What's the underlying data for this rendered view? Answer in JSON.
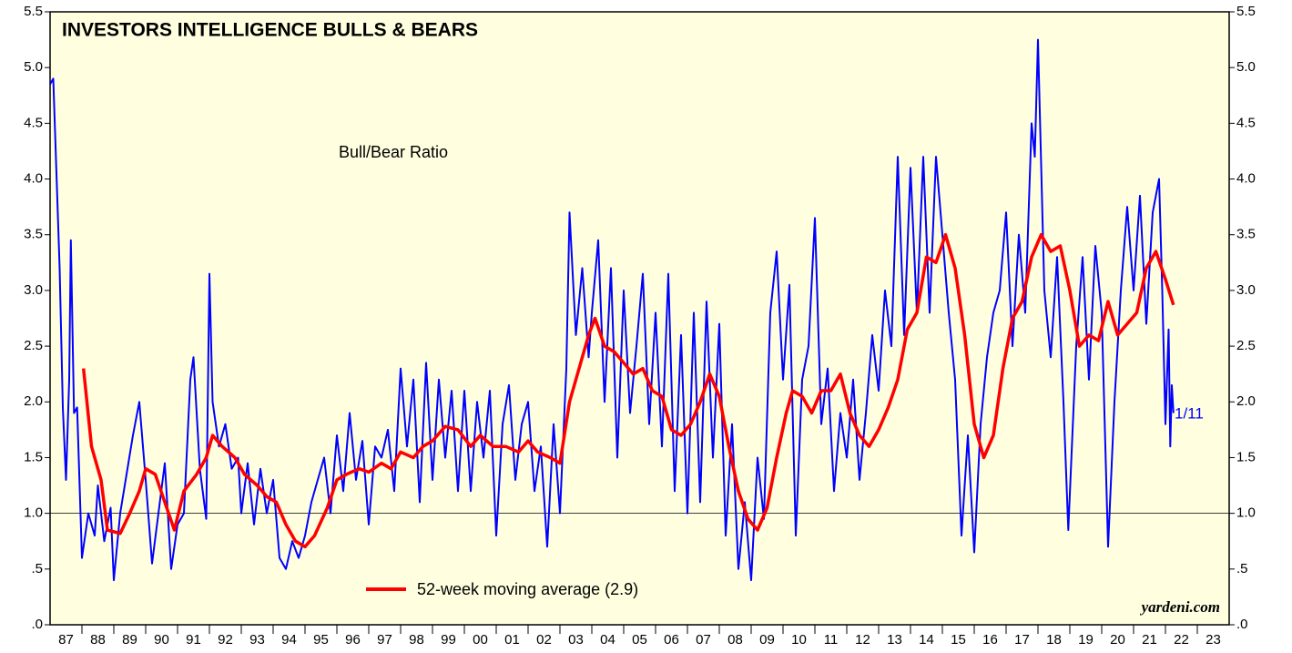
{
  "chart_data": {
    "type": "line",
    "title": "INVESTORS INTELLIGENCE BULLS & BEARS",
    "annotations": [
      "yardeni.com",
      "1/11"
    ],
    "categories": [
      "87",
      "88",
      "89",
      "90",
      "91",
      "92",
      "93",
      "94",
      "95",
      "96",
      "97",
      "98",
      "99",
      "00",
      "01",
      "02",
      "03",
      "04",
      "05",
      "06",
      "07",
      "08",
      "09",
      "10",
      "11",
      "12",
      "13",
      "14",
      "15",
      "16",
      "17",
      "18",
      "19",
      "20",
      "21",
      "22",
      "23"
    ],
    "xlim": [
      1987,
      2024
    ],
    "ylim": [
      0,
      5.5
    ],
    "yticks": [
      {
        "value": 0,
        "label": ".0"
      },
      {
        "value": 0.5,
        "label": ".5"
      },
      {
        "value": 1,
        "label": "1.0"
      },
      {
        "value": 1.5,
        "label": "1.5"
      },
      {
        "value": 2,
        "label": "2.0"
      },
      {
        "value": 2.5,
        "label": "2.5"
      },
      {
        "value": 3,
        "label": "3.0"
      },
      {
        "value": 3.5,
        "label": "3.5"
      },
      {
        "value": 4,
        "label": "4.0"
      },
      {
        "value": 4.5,
        "label": "4.5"
      },
      {
        "value": 5,
        "label": "5.0"
      },
      {
        "value": 5.5,
        "label": "5.5"
      }
    ],
    "reference_line": 1,
    "background": "#ffffe0",
    "series": [
      {
        "name": "Bull/Bear Ratio",
        "color": "#0000ff",
        "x": [
          1987.0,
          1987.1,
          1987.2,
          1987.3,
          1987.4,
          1987.5,
          1987.6,
          1987.65,
          1987.75,
          1987.85,
          1988.0,
          1988.2,
          1988.4,
          1988.5,
          1988.7,
          1988.9,
          1989.0,
          1989.2,
          1989.4,
          1989.6,
          1989.8,
          1990.0,
          1990.2,
          1990.4,
          1990.6,
          1990.8,
          1991.0,
          1991.2,
          1991.4,
          1991.5,
          1991.7,
          1991.9,
          1992.0,
          1992.1,
          1992.3,
          1992.5,
          1992.7,
          1992.9,
          1993.0,
          1993.2,
          1993.4,
          1993.6,
          1993.8,
          1994.0,
          1994.2,
          1994.4,
          1994.6,
          1994.8,
          1995.0,
          1995.2,
          1995.4,
          1995.6,
          1995.8,
          1996.0,
          1996.2,
          1996.4,
          1996.6,
          1996.8,
          1997.0,
          1997.2,
          1997.4,
          1997.6,
          1997.8,
          1998.0,
          1998.2,
          1998.4,
          1998.6,
          1998.8,
          1999.0,
          1999.2,
          1999.4,
          1999.6,
          1999.8,
          2000.0,
          2000.2,
          2000.4,
          2000.6,
          2000.8,
          2001.0,
          2001.2,
          2001.4,
          2001.6,
          2001.8,
          2002.0,
          2002.2,
          2002.4,
          2002.6,
          2002.8,
          2003.0,
          2003.2,
          2003.3,
          2003.5,
          2003.7,
          2003.9,
          2004.0,
          2004.2,
          2004.4,
          2004.6,
          2004.8,
          2005.0,
          2005.2,
          2005.4,
          2005.6,
          2005.8,
          2006.0,
          2006.2,
          2006.4,
          2006.6,
          2006.8,
          2007.0,
          2007.2,
          2007.4,
          2007.6,
          2007.8,
          2008.0,
          2008.2,
          2008.4,
          2008.6,
          2008.8,
          2009.0,
          2009.2,
          2009.4,
          2009.6,
          2009.8,
          2010.0,
          2010.2,
          2010.4,
          2010.6,
          2010.8,
          2011.0,
          2011.2,
          2011.4,
          2011.6,
          2011.8,
          2012.0,
          2012.2,
          2012.4,
          2012.6,
          2012.8,
          2013.0,
          2013.2,
          2013.4,
          2013.6,
          2013.8,
          2014.0,
          2014.2,
          2014.4,
          2014.6,
          2014.8,
          2015.0,
          2015.2,
          2015.4,
          2015.6,
          2015.8,
          2016.0,
          2016.2,
          2016.4,
          2016.6,
          2016.8,
          2017.0,
          2017.2,
          2017.4,
          2017.6,
          2017.8,
          2017.9,
          2018.0,
          2018.2,
          2018.4,
          2018.6,
          2018.8,
          2018.95,
          2019.2,
          2019.4,
          2019.6,
          2019.8,
          2020.0,
          2020.2,
          2020.4,
          2020.6,
          2020.8,
          2021.0,
          2021.2,
          2021.4,
          2021.6,
          2021.8,
          2021.9,
          2022.0,
          2022.1,
          2022.15,
          2022.2,
          2022.25
        ],
        "values": [
          4.85,
          4.9,
          4.05,
          3.2,
          1.95,
          1.3,
          2.2,
          3.45,
          1.9,
          1.95,
          0.6,
          1.0,
          0.8,
          1.25,
          0.75,
          1.05,
          0.4,
          1.0,
          1.35,
          1.7,
          2.0,
          1.3,
          0.55,
          1.0,
          1.45,
          0.5,
          0.9,
          1.0,
          2.2,
          2.4,
          1.4,
          0.95,
          3.15,
          2.0,
          1.6,
          1.8,
          1.4,
          1.5,
          1.0,
          1.45,
          0.9,
          1.4,
          1.0,
          1.3,
          0.6,
          0.5,
          0.75,
          0.6,
          0.8,
          1.1,
          1.3,
          1.5,
          1.0,
          1.7,
          1.2,
          1.9,
          1.3,
          1.65,
          0.9,
          1.6,
          1.5,
          1.75,
          1.2,
          2.3,
          1.6,
          2.2,
          1.1,
          2.35,
          1.3,
          2.2,
          1.5,
          2.1,
          1.2,
          2.1,
          1.2,
          2.0,
          1.5,
          2.1,
          0.8,
          1.8,
          2.15,
          1.3,
          1.8,
          2.0,
          1.2,
          1.6,
          0.7,
          1.8,
          1.0,
          2.3,
          3.7,
          2.6,
          3.2,
          2.4,
          2.8,
          3.45,
          2.0,
          3.2,
          1.5,
          3.0,
          1.9,
          2.5,
          3.15,
          1.8,
          2.8,
          1.6,
          3.15,
          1.2,
          2.6,
          1.0,
          2.8,
          1.1,
          2.9,
          1.5,
          2.7,
          0.8,
          1.8,
          0.5,
          1.1,
          0.4,
          1.5,
          0.95,
          2.8,
          3.35,
          2.2,
          3.05,
          0.8,
          2.2,
          2.5,
          3.65,
          1.8,
          2.3,
          1.2,
          1.9,
          1.5,
          2.2,
          1.3,
          1.9,
          2.6,
          2.1,
          3.0,
          2.5,
          4.2,
          2.6,
          4.1,
          2.8,
          4.2,
          2.8,
          4.2,
          3.5,
          2.8,
          2.2,
          0.8,
          1.7,
          0.65,
          1.8,
          2.4,
          2.8,
          3.0,
          3.7,
          2.5,
          3.5,
          2.8,
          4.5,
          4.2,
          5.25,
          3.0,
          2.4,
          3.3,
          2.0,
          0.85,
          2.5,
          3.3,
          2.2,
          3.4,
          2.8,
          0.7,
          2.0,
          3.0,
          3.75,
          3.0,
          3.85,
          2.7,
          3.7,
          4.0,
          3.0,
          1.8,
          2.65,
          1.6,
          2.15,
          1.9
        ]
      },
      {
        "name": "52-week moving average (2.9)",
        "color": "#ff0000",
        "x": [
          1988.05,
          1988.3,
          1988.6,
          1988.8,
          1989.2,
          1989.5,
          1989.8,
          1990.0,
          1990.3,
          1990.6,
          1990.9,
          1991.2,
          1991.6,
          1991.9,
          1992.1,
          1992.4,
          1992.8,
          1993.1,
          1993.5,
          1993.8,
          1994.1,
          1994.4,
          1994.7,
          1995.0,
          1995.3,
          1995.7,
          1996.0,
          1996.3,
          1996.7,
          1997.0,
          1997.4,
          1997.7,
          1998.0,
          1998.4,
          1998.7,
          1999.0,
          1999.4,
          1999.8,
          2000.2,
          2000.5,
          2000.9,
          2001.3,
          2001.7,
          2002.0,
          2002.3,
          2002.7,
          2003.0,
          2003.3,
          2003.6,
          2003.9,
          2004.1,
          2004.4,
          2004.7,
          2005.0,
          2005.3,
          2005.6,
          2005.9,
          2006.2,
          2006.5,
          2006.8,
          2007.1,
          2007.4,
          2007.7,
          2008.0,
          2008.3,
          2008.6,
          2008.9,
          2009.2,
          2009.5,
          2009.8,
          2010.1,
          2010.3,
          2010.6,
          2010.9,
          2011.2,
          2011.5,
          2011.8,
          2012.1,
          2012.4,
          2012.7,
          2013.0,
          2013.3,
          2013.6,
          2013.9,
          2014.2,
          2014.5,
          2014.8,
          2015.1,
          2015.4,
          2015.7,
          2016.0,
          2016.3,
          2016.6,
          2016.9,
          2017.2,
          2017.5,
          2017.8,
          2018.1,
          2018.4,
          2018.7,
          2019.0,
          2019.3,
          2019.6,
          2019.9,
          2020.2,
          2020.5,
          2020.8,
          2021.1,
          2021.4,
          2021.7,
          2022.0,
          2022.25
        ],
        "values": [
          2.3,
          1.6,
          1.3,
          0.85,
          0.82,
          1.0,
          1.2,
          1.4,
          1.35,
          1.1,
          0.85,
          1.2,
          1.35,
          1.5,
          1.7,
          1.6,
          1.5,
          1.35,
          1.25,
          1.15,
          1.1,
          0.9,
          0.75,
          0.7,
          0.8,
          1.05,
          1.3,
          1.35,
          1.4,
          1.37,
          1.45,
          1.4,
          1.55,
          1.5,
          1.6,
          1.65,
          1.78,
          1.75,
          1.6,
          1.7,
          1.6,
          1.6,
          1.55,
          1.65,
          1.55,
          1.5,
          1.45,
          2.0,
          2.3,
          2.6,
          2.75,
          2.5,
          2.45,
          2.35,
          2.25,
          2.3,
          2.1,
          2.05,
          1.75,
          1.7,
          1.8,
          2.0,
          2.25,
          2.05,
          1.6,
          1.2,
          0.95,
          0.85,
          1.05,
          1.5,
          1.9,
          2.1,
          2.05,
          1.9,
          2.1,
          2.1,
          2.25,
          1.9,
          1.7,
          1.6,
          1.75,
          1.95,
          2.2,
          2.65,
          2.8,
          3.3,
          3.25,
          3.5,
          3.2,
          2.6,
          1.8,
          1.5,
          1.7,
          2.3,
          2.75,
          2.9,
          3.3,
          3.5,
          3.35,
          3.4,
          3.0,
          2.5,
          2.6,
          2.55,
          2.9,
          2.6,
          2.7,
          2.8,
          3.2,
          3.35,
          3.1,
          2.87
        ]
      }
    ]
  }
}
